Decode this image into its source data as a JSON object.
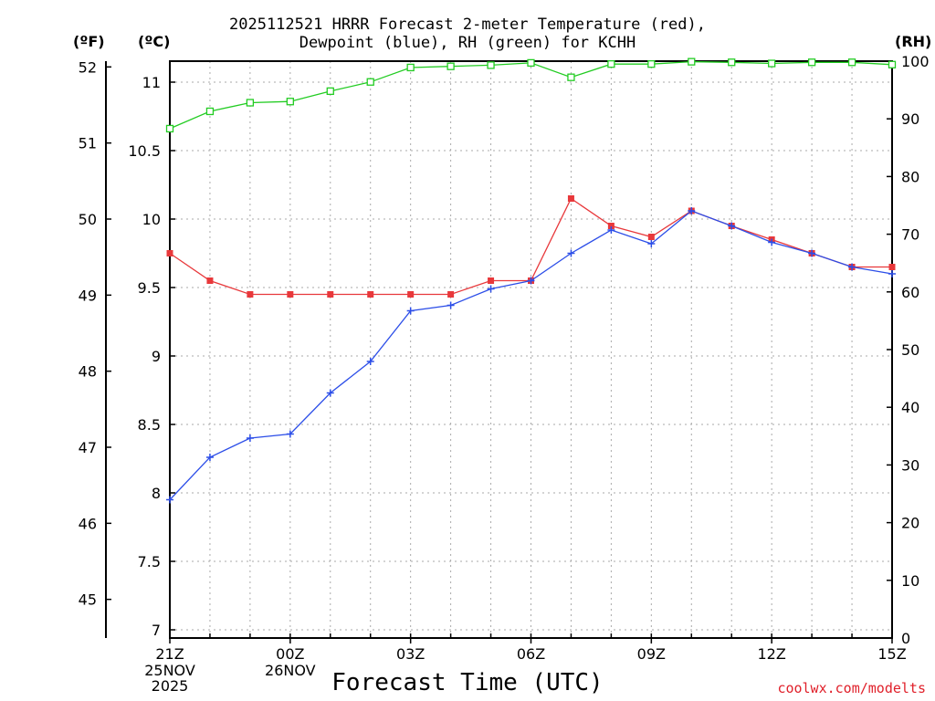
{
  "title": {
    "line1": "2025112521 HRRR Forecast 2-meter Temperature (red),",
    "line2": "Dewpoint (blue), RH (green) for KCHH"
  },
  "units": {
    "fahrenheit": "(ºF)",
    "celsius": "(ºC)",
    "rh": "(RH)"
  },
  "credit": "coolwx.com/modelts",
  "colors": {
    "temperature": "#e8383b",
    "dewpoint": "#2c4ee8",
    "rh": "#22cc22",
    "grid": "#aaaaaa"
  },
  "chart_data": {
    "type": "line",
    "title": "2025112521 HRRR Forecast 2-meter Temperature (red), Dewpoint (blue), RH (green) for KCHH",
    "xlabel": "Forecast Time (UTC)",
    "x_hours": [
      0,
      1,
      2,
      3,
      4,
      5,
      6,
      7,
      8,
      9,
      10,
      11,
      12,
      13,
      14,
      15,
      16,
      17,
      18
    ],
    "x_ticks": [
      {
        "hour": 0,
        "label": "21Z"
      },
      {
        "hour": 3,
        "label": "00Z"
      },
      {
        "hour": 6,
        "label": "03Z"
      },
      {
        "hour": 9,
        "label": "06Z"
      },
      {
        "hour": 12,
        "label": "09Z"
      },
      {
        "hour": 15,
        "label": "12Z"
      },
      {
        "hour": 18,
        "label": "15Z"
      }
    ],
    "date_labels": [
      {
        "hour": 0,
        "date": "25NOV",
        "year": "2025"
      },
      {
        "hour": 3,
        "date": "26NOV",
        "year": ""
      }
    ],
    "celsius_axis": {
      "ylim": [
        7,
        11.1
      ],
      "ticks": [
        "7",
        "7.5",
        "8",
        "8.5",
        "9",
        "9.5",
        "10",
        "10.5",
        "11"
      ]
    },
    "fahrenheit_axis": {
      "ticks": [
        "45",
        "46",
        "47",
        "48",
        "49",
        "50",
        "51",
        "52"
      ]
    },
    "rh_axis": {
      "ylim": [
        0,
        100
      ],
      "ticks": [
        "0",
        "10",
        "20",
        "30",
        "40",
        "50",
        "60",
        "70",
        "80",
        "90",
        "100"
      ]
    },
    "series": [
      {
        "name": "Temperature",
        "units": "C",
        "axis": "celsius",
        "values": [
          9.75,
          9.55,
          9.45,
          9.45,
          9.45,
          9.45,
          9.45,
          9.45,
          9.55,
          9.55,
          10.15,
          9.95,
          9.87,
          10.06,
          9.95,
          9.85,
          9.75,
          9.65,
          9.65
        ]
      },
      {
        "name": "Dewpoint",
        "units": "C",
        "axis": "celsius",
        "values": [
          7.95,
          8.26,
          8.4,
          8.43,
          8.73,
          8.96,
          9.33,
          9.37,
          9.49,
          9.55,
          9.75,
          9.92,
          9.82,
          10.06,
          9.95,
          9.83,
          9.75,
          9.65,
          9.6
        ]
      },
      {
        "name": "RH",
        "units": "%",
        "axis": "rh",
        "values": [
          88.3,
          91.3,
          92.8,
          93.0,
          94.8,
          96.4,
          98.9,
          99.1,
          99.3,
          99.7,
          97.2,
          99.5,
          99.5,
          99.9,
          99.8,
          99.6,
          99.8,
          99.8,
          99.4
        ]
      }
    ]
  }
}
